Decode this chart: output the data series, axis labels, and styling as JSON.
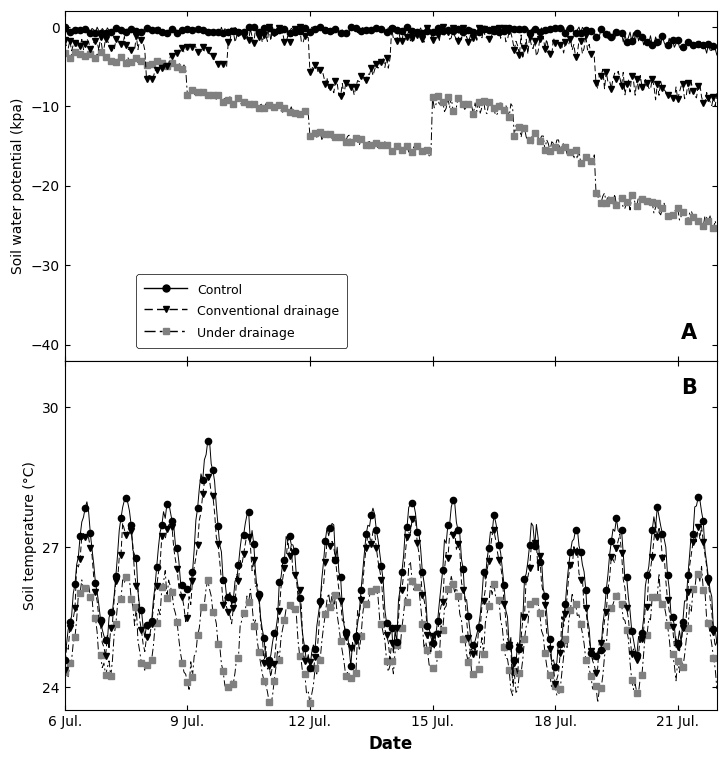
{
  "panel_A_label": "A",
  "panel_B_label": "B",
  "ylabel_A": "Soil water potential (kpa)",
  "ylabel_B": "Soil temperature (°C)",
  "xlabel": "Date",
  "xtick_labels": [
    "6 Jul.",
    "9 Jul.",
    "12 Jul.",
    "15 Jul.",
    "18 Jul.",
    "21 Jul."
  ],
  "xtick_positions": [
    0,
    72,
    144,
    216,
    288,
    360
  ],
  "ylim_A": [
    -42,
    2
  ],
  "yticks_A": [
    0,
    -10,
    -20,
    -30,
    -40
  ],
  "ylim_B": [
    23.5,
    31
  ],
  "yticks_B": [
    24,
    27,
    30
  ],
  "legend_labels": [
    "Control",
    "Conventional drainage",
    "Under drainage"
  ],
  "n_points": 384,
  "figsize": [
    7.28,
    7.64
  ],
  "dpi": 100
}
